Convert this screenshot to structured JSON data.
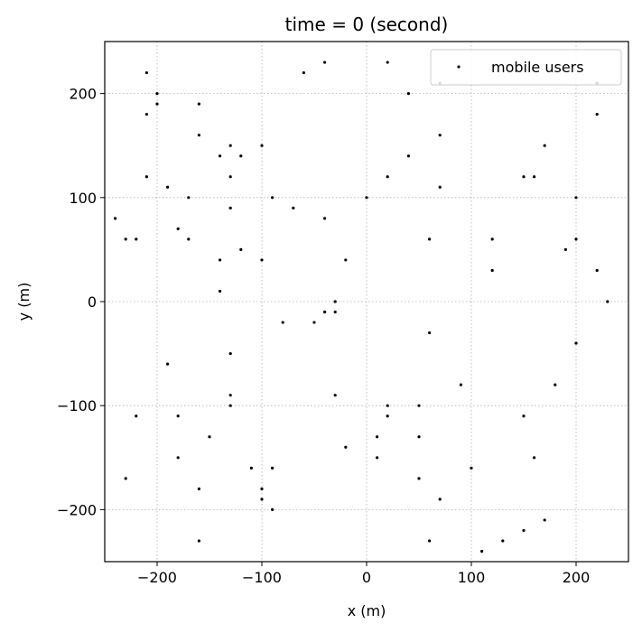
{
  "chart_data": {
    "type": "scatter",
    "title": "time = 0 (second)",
    "xlabel": "x (m)",
    "ylabel": "y (m)",
    "xlim": [
      -250,
      250
    ],
    "ylim": [
      -250,
      250
    ],
    "xticks": [
      -200,
      -100,
      0,
      100,
      200
    ],
    "yticks": [
      -200,
      -100,
      0,
      100,
      200
    ],
    "xtick_labels": [
      "−200",
      "−100",
      "0",
      "100",
      "200"
    ],
    "ytick_labels": [
      "−200",
      "−100",
      "0",
      "100",
      "200"
    ],
    "grid": true,
    "grid_style": "dotted",
    "legend_position": "top-right",
    "series": [
      {
        "name": "mobile users",
        "color": "#000000",
        "marker": "point",
        "points": [
          [
            -240,
            80
          ],
          [
            -230,
            60
          ],
          [
            -230,
            -170
          ],
          [
            -220,
            60
          ],
          [
            -220,
            -110
          ],
          [
            -210,
            220
          ],
          [
            -210,
            180
          ],
          [
            -210,
            120
          ],
          [
            -200,
            200
          ],
          [
            -200,
            190
          ],
          [
            -190,
            110
          ],
          [
            -190,
            -60
          ],
          [
            -180,
            70
          ],
          [
            -180,
            -110
          ],
          [
            -180,
            -150
          ],
          [
            -170,
            100
          ],
          [
            -170,
            60
          ],
          [
            -160,
            190
          ],
          [
            -160,
            160
          ],
          [
            -160,
            -180
          ],
          [
            -160,
            -230
          ],
          [
            -150,
            -130
          ],
          [
            -140,
            140
          ],
          [
            -140,
            40
          ],
          [
            -140,
            10
          ],
          [
            -130,
            150
          ],
          [
            -130,
            120
          ],
          [
            -130,
            90
          ],
          [
            -130,
            -50
          ],
          [
            -130,
            -90
          ],
          [
            -130,
            -100
          ],
          [
            -120,
            140
          ],
          [
            -120,
            50
          ],
          [
            -110,
            -160
          ],
          [
            -100,
            150
          ],
          [
            -100,
            40
          ],
          [
            -100,
            -180
          ],
          [
            -100,
            -190
          ],
          [
            -90,
            100
          ],
          [
            -90,
            -160
          ],
          [
            -90,
            -200
          ],
          [
            -80,
            -20
          ],
          [
            -70,
            90
          ],
          [
            -60,
            220
          ],
          [
            -50,
            -20
          ],
          [
            -40,
            230
          ],
          [
            -40,
            80
          ],
          [
            -40,
            -10
          ],
          [
            -30,
            0
          ],
          [
            -30,
            -10
          ],
          [
            -30,
            -90
          ],
          [
            -20,
            40
          ],
          [
            -20,
            -140
          ],
          [
            0,
            100
          ],
          [
            10,
            -130
          ],
          [
            10,
            -150
          ],
          [
            20,
            230
          ],
          [
            20,
            120
          ],
          [
            20,
            -100
          ],
          [
            20,
            -110
          ],
          [
            40,
            200
          ],
          [
            40,
            140
          ],
          [
            50,
            -100
          ],
          [
            50,
            -130
          ],
          [
            50,
            -170
          ],
          [
            60,
            60
          ],
          [
            60,
            -30
          ],
          [
            60,
            -230
          ],
          [
            70,
            210
          ],
          [
            70,
            160
          ],
          [
            70,
            110
          ],
          [
            70,
            -190
          ],
          [
            90,
            -80
          ],
          [
            100,
            -160
          ],
          [
            110,
            -240
          ],
          [
            120,
            60
          ],
          [
            120,
            30
          ],
          [
            130,
            -230
          ],
          [
            150,
            120
          ],
          [
            150,
            -110
          ],
          [
            150,
            -220
          ],
          [
            160,
            120
          ],
          [
            160,
            -150
          ],
          [
            170,
            150
          ],
          [
            170,
            -210
          ],
          [
            180,
            -80
          ],
          [
            190,
            50
          ],
          [
            200,
            100
          ],
          [
            200,
            60
          ],
          [
            200,
            -40
          ],
          [
            220,
            210
          ],
          [
            220,
            180
          ],
          [
            220,
            30
          ],
          [
            230,
            0
          ]
        ]
      }
    ]
  }
}
